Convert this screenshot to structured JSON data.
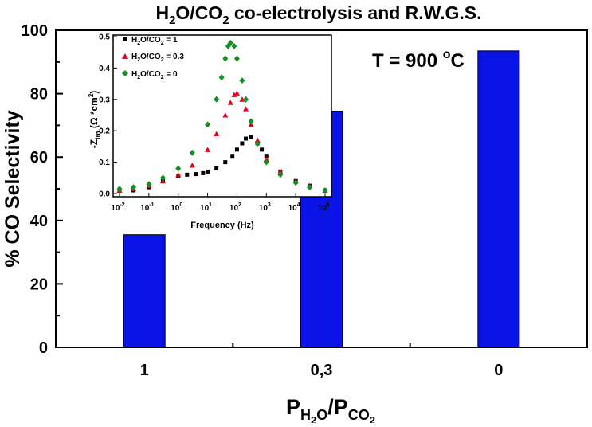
{
  "chart_data": [
    {
      "type": "bar",
      "title": "H₂O/CO₂ co-electrolysis and R.W.G.S.",
      "title_parts": {
        "a": "H",
        "b": "2",
        "c": "O/CO",
        "d": "2",
        "e": " co-electrolysis and R.W.G.S."
      },
      "ylabel": "% CO Selectivity",
      "xlabel": "PH₂O/PCO₂",
      "xlabel_parts": {
        "a": "P",
        "b": "H",
        "c": "2",
        "d": "O",
        "e": "/P",
        "f": "CO",
        "g": "2"
      },
      "annotation": "T = 900 °C",
      "annotation_parts": {
        "a": "T = 900 ",
        "b": "o",
        "c": "C"
      },
      "categories": [
        "1",
        "0,3",
        "0"
      ],
      "values": [
        35.5,
        74.5,
        93.5
      ],
      "ylim": [
        0,
        100
      ],
      "yticks": [
        "0",
        "20",
        "40",
        "60",
        "80",
        "100"
      ],
      "color": "#0a14e6"
    },
    {
      "type": "scatter",
      "xlabel": "Frequency (Hz)",
      "ylabel": "-Zim (Ω*cm²)",
      "ylabel_parts": {
        "a": "-Z",
        "b": "im",
        "c": " (Ω *cm",
        "d": "2",
        "e": ")"
      },
      "xscale": "log",
      "xlim": [
        0.01,
        100000
      ],
      "ylim": [
        0,
        0.5
      ],
      "yticks": [
        "0.0",
        "0.1",
        "0.2",
        "0.3",
        "0.4",
        "0.5"
      ],
      "xticks": [
        {
          "base": "10",
          "exp": "-2",
          "v": 0.01
        },
        {
          "base": "10",
          "exp": "-1",
          "v": 0.1
        },
        {
          "base": "10",
          "exp": "0",
          "v": 1
        },
        {
          "base": "10",
          "exp": "1",
          "v": 10
        },
        {
          "base": "10",
          "exp": "2",
          "v": 100
        },
        {
          "base": "10",
          "exp": "3",
          "v": 1000
        },
        {
          "base": "10",
          "exp": "4",
          "v": 10000
        },
        {
          "base": "10",
          "exp": "5",
          "v": 100000
        }
      ],
      "legend_position": "top-left",
      "series": [
        {
          "name": "H2O/CO2 = 1",
          "legend_parts": {
            "a": "H",
            "b": "2",
            "c": "O/CO",
            "d": "2",
            "e": " = 1"
          },
          "marker": "square",
          "color": "#000000",
          "x": [
            0.01,
            0.03,
            0.1,
            0.3,
            1,
            2,
            4,
            7,
            10,
            20,
            40,
            70,
            100,
            150,
            200,
            300,
            500,
            700,
            1000,
            3000,
            10000,
            30000,
            100000
          ],
          "y": [
            0.01,
            0.01,
            0.02,
            0.04,
            0.055,
            0.06,
            0.062,
            0.065,
            0.07,
            0.08,
            0.1,
            0.12,
            0.14,
            0.16,
            0.175,
            0.18,
            0.16,
            0.14,
            0.12,
            0.07,
            0.04,
            0.025,
            0.01
          ]
        },
        {
          "name": "H2O/CO2 = 0.3",
          "legend_parts": {
            "a": "H",
            "b": "2",
            "c": "O/CO",
            "d": "2",
            "e": " = 0.3"
          },
          "marker": "triangle",
          "color": "#e8001c",
          "x": [
            0.01,
            0.03,
            0.1,
            0.3,
            1,
            3,
            10,
            20,
            40,
            60,
            80,
            100,
            150,
            200,
            300,
            500,
            1000,
            3000,
            10000,
            30000,
            100000
          ],
          "y": [
            0.01,
            0.015,
            0.025,
            0.04,
            0.06,
            0.09,
            0.14,
            0.19,
            0.25,
            0.29,
            0.315,
            0.32,
            0.3,
            0.27,
            0.22,
            0.17,
            0.11,
            0.07,
            0.04,
            0.025,
            0.01
          ]
        },
        {
          "name": "H2O/CO2 = 0",
          "legend_parts": {
            "a": "H",
            "b": "2",
            "c": "O/CO",
            "d": "2",
            "e": " = 0"
          },
          "marker": "diamond",
          "color": "#109120",
          "x": [
            0.01,
            0.03,
            0.1,
            0.3,
            1,
            3,
            10,
            20,
            30,
            40,
            50,
            60,
            80,
            100,
            150,
            200,
            300,
            500,
            1000,
            3000,
            10000,
            30000,
            100000
          ],
          "y": [
            0.015,
            0.02,
            0.03,
            0.05,
            0.08,
            0.13,
            0.22,
            0.3,
            0.37,
            0.43,
            0.47,
            0.48,
            0.47,
            0.43,
            0.36,
            0.3,
            0.23,
            0.16,
            0.1,
            0.06,
            0.035,
            0.02,
            0.01
          ]
        }
      ]
    }
  ]
}
